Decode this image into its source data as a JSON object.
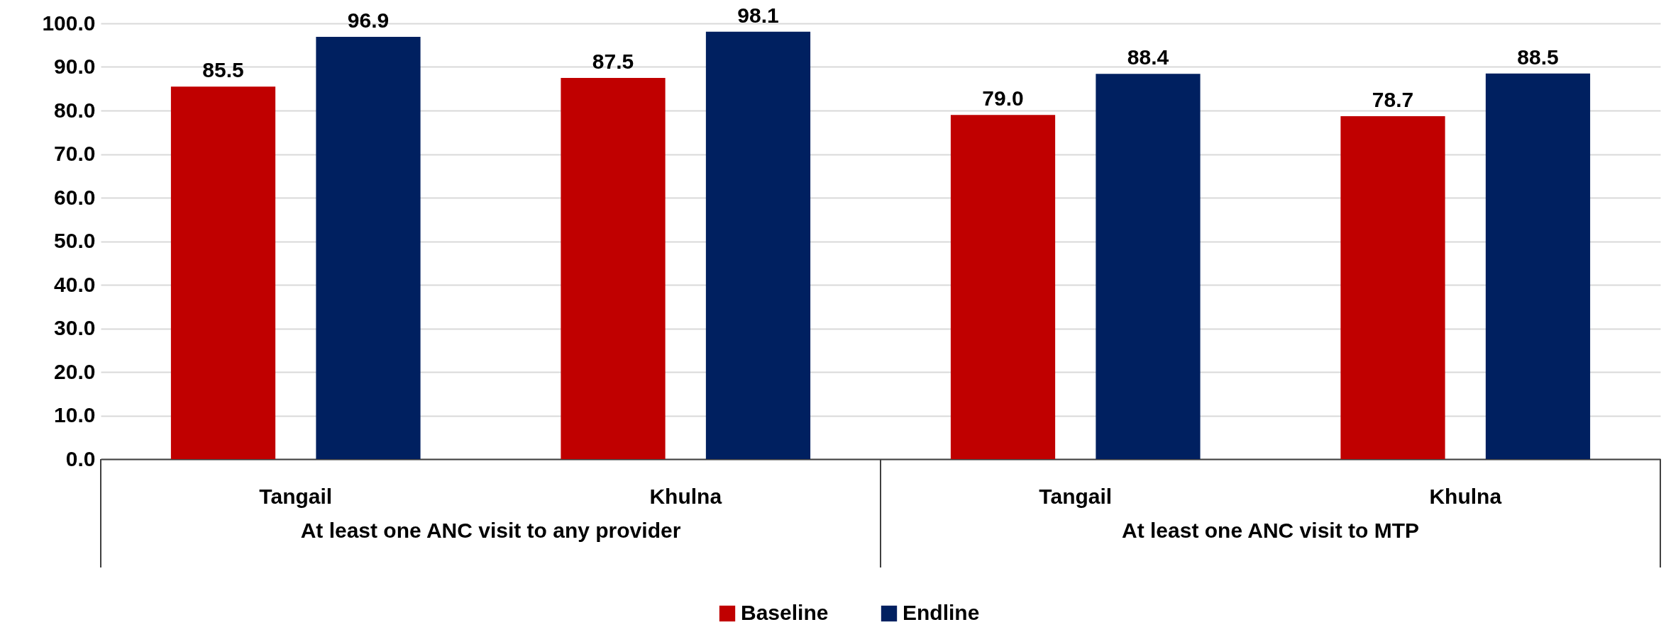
{
  "chart_data": {
    "type": "bar",
    "categories": [
      "Tangail",
      "Khulna",
      "Tangail",
      "Khulna"
    ],
    "series": [
      {
        "name": "Baseline",
        "color": "#c00000",
        "values": [
          85.5,
          87.5,
          79.0,
          78.7
        ],
        "value_labels": [
          "85.5",
          "87.5",
          "79.0",
          "78.7"
        ]
      },
      {
        "name": "Endline",
        "color": "#002060",
        "values": [
          96.9,
          98.1,
          88.4,
          88.5
        ],
        "value_labels": [
          "96.9",
          "98.1",
          "88.4",
          "88.5"
        ]
      }
    ],
    "ylim": [
      0,
      100
    ],
    "yticks": [
      {
        "value": 0,
        "label": "0.0"
      },
      {
        "value": 10,
        "label": "10.0"
      },
      {
        "value": 20,
        "label": "20.0"
      },
      {
        "value": 30,
        "label": "30.0"
      },
      {
        "value": 40,
        "label": "40.0"
      },
      {
        "value": 50,
        "label": "50.0"
      },
      {
        "value": 60,
        "label": "60.0"
      },
      {
        "value": 70,
        "label": "70.0"
      },
      {
        "value": 80,
        "label": "80.0"
      },
      {
        "value": 90,
        "label": "90.0"
      },
      {
        "value": 100,
        "label": "100.0"
      }
    ],
    "grid": "y",
    "legend": "bottom",
    "annotations": [
      "At least one ANC visit to any provider",
      "At least one ANC visit to MTP"
    ]
  }
}
